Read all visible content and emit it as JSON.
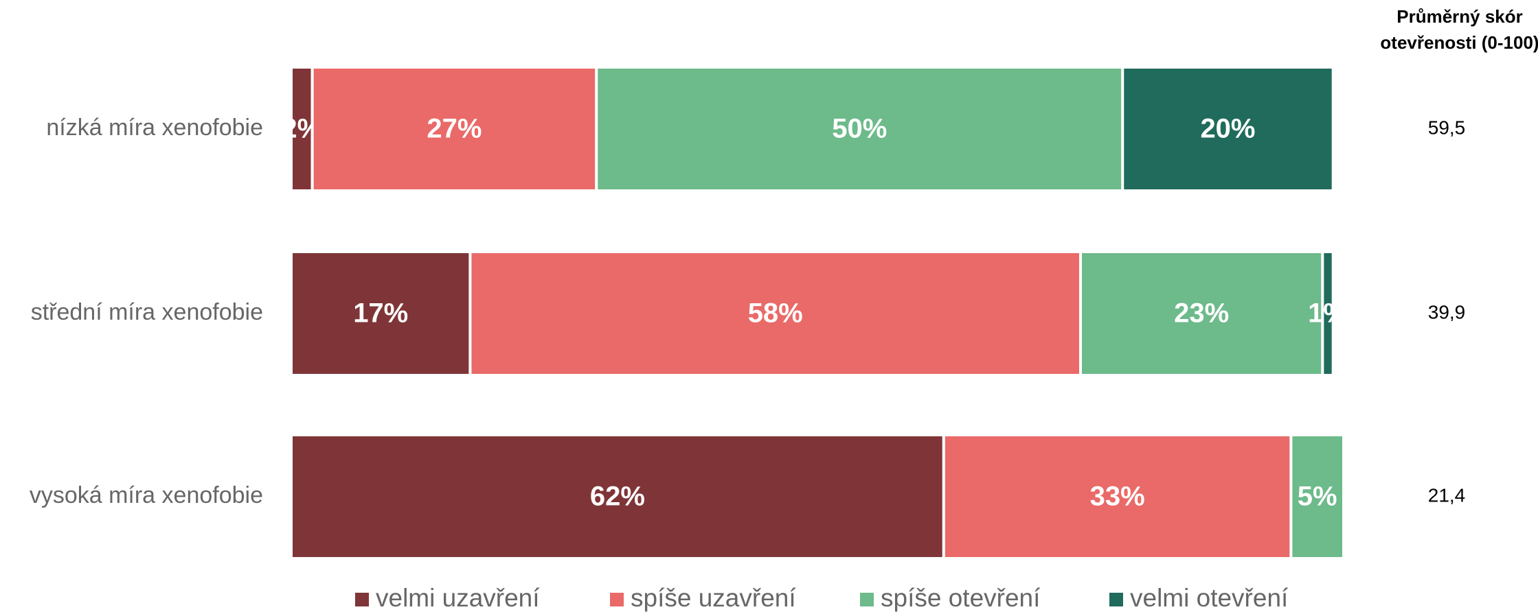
{
  "chart_data": {
    "type": "stacked_bar_horizontal",
    "categories": [
      "nízká míra xenofobie",
      "střední míra xenofobie",
      "vysoká míra xenofobie"
    ],
    "series": [
      {
        "name": "velmi uzavření",
        "color": "#7f3537",
        "values": [
          2,
          17,
          62
        ],
        "value_labels": [
          "2%",
          "17%",
          "62%"
        ]
      },
      {
        "name": "spíše uzavření",
        "color": "#e96a68",
        "values": [
          27,
          58,
          33
        ],
        "value_labels": [
          "27%",
          "58%",
          "33%"
        ]
      },
      {
        "name": "spíše otevření",
        "color": "#6dba8b",
        "values": [
          50,
          23,
          5
        ],
        "value_labels": [
          "50%",
          "23%",
          "5%"
        ]
      },
      {
        "name": "velmi otevření",
        "color": "#206b5b",
        "values": [
          20,
          1,
          null
        ],
        "value_labels": [
          "20%",
          "1%",
          null
        ]
      }
    ],
    "xlim": [
      0,
      100
    ],
    "score_title": [
      "Průměrný skór",
      "otevřenosti (0-100)"
    ],
    "scores": [
      59.5,
      39.9,
      21.4
    ],
    "score_labels": [
      "59,5",
      "39,9",
      "21,4"
    ],
    "legend": "bottom"
  }
}
